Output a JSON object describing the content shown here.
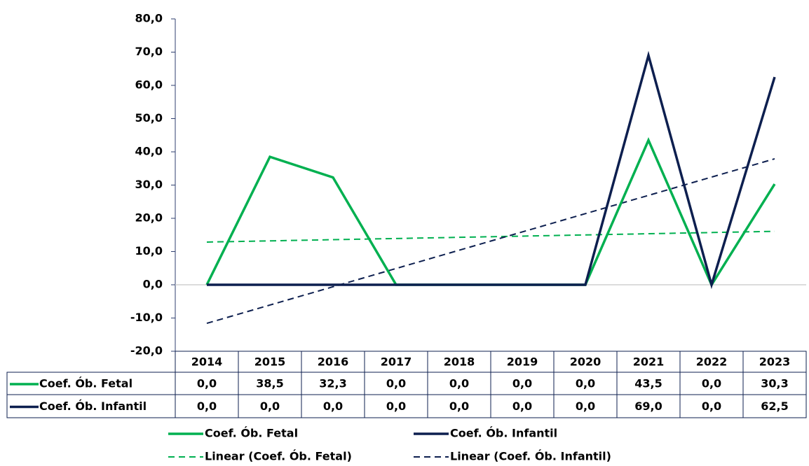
{
  "chart_data": {
    "type": "line",
    "categories": [
      "2014",
      "2015",
      "2016",
      "2017",
      "2018",
      "2019",
      "2020",
      "2021",
      "2022",
      "2023"
    ],
    "series": [
      {
        "name": "Coef. Ób. Fetal",
        "color": "#00b050",
        "values": [
          0,
          38.5,
          32.3,
          0,
          0,
          0,
          0,
          43.5,
          0,
          30.3
        ],
        "value_labels": [
          "0,0",
          "38,5",
          "32,3",
          "0,0",
          "0,0",
          "0,0",
          "0,0",
          "43,5",
          "0,0",
          "30,3"
        ]
      },
      {
        "name": "Coef. Ób. Infantil",
        "color": "#0d1f4f",
        "values": [
          0,
          0,
          0,
          0,
          0,
          0,
          0,
          69.0,
          0,
          62.5
        ],
        "value_labels": [
          "0,0",
          "0,0",
          "0,0",
          "0,0",
          "0,0",
          "0,0",
          "0,0",
          "69,0",
          "0,0",
          "62,5"
        ]
      },
      {
        "name": "Linear (Coef. Ób. Fetal)",
        "color": "#00b050",
        "dashed": true,
        "values": [
          12.85,
          13.21,
          13.57,
          13.92,
          14.28,
          14.64,
          15.0,
          15.36,
          15.72,
          16.08
        ]
      },
      {
        "name": "Linear (Coef. Ób. Infantil)",
        "color": "#0d1f4f",
        "dashed": true,
        "values": [
          -11.6,
          -6.1,
          -0.6,
          4.9,
          10.4,
          15.9,
          21.4,
          26.9,
          32.4,
          37.9
        ]
      }
    ],
    "ylim": [
      -20,
      80
    ],
    "yticks": [
      {
        "value": -20,
        "label": "-20,0"
      },
      {
        "value": -10,
        "label": "-10,0"
      },
      {
        "value": 0,
        "label": "0,0"
      },
      {
        "value": 10,
        "label": "10,0"
      },
      {
        "value": 20,
        "label": "20,0"
      },
      {
        "value": 30,
        "label": "30,0"
      },
      {
        "value": 40,
        "label": "40,0"
      },
      {
        "value": 50,
        "label": "50,0"
      },
      {
        "value": 60,
        "label": "60,0"
      },
      {
        "value": 70,
        "label": "70,0"
      },
      {
        "value": 80,
        "label": "80,0"
      }
    ],
    "legend": "bottom"
  }
}
